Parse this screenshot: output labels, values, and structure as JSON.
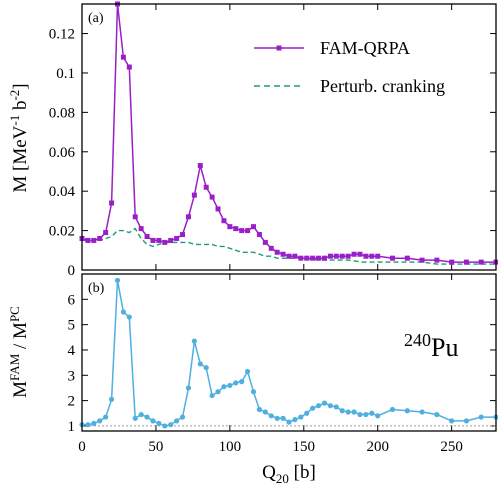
{
  "chart_data": [
    {
      "type": "line",
      "panel_label": "(a)",
      "ylabel": "M [MeV-1 b-2]",
      "ylabel_parts": {
        "main": "M [MeV",
        "sup1": "-1",
        "mid": " b",
        "sup2": "-2",
        "end": "]"
      },
      "xlim": [
        0,
        280
      ],
      "ylim": [
        0,
        0.135
      ],
      "yticks": [
        0,
        0.02,
        0.04,
        0.06,
        0.08,
        0.1,
        0.12
      ],
      "ytick_labels": [
        "0",
        "0.02",
        "0.04",
        "0.06",
        "0.08",
        "0.1",
        "0.12"
      ],
      "legend_position": "top-right",
      "series": [
        {
          "name": "FAM-QRPA",
          "color": "#9b1fc9",
          "style": "solid-square-markers",
          "x": [
            0,
            4,
            8,
            12,
            16,
            20,
            24,
            28,
            32,
            36,
            40,
            44,
            48,
            52,
            56,
            60,
            64,
            68,
            72,
            76,
            80,
            84,
            88,
            92,
            96,
            100,
            104,
            108,
            112,
            116,
            120,
            124,
            128,
            132,
            136,
            140,
            144,
            148,
            152,
            156,
            160,
            164,
            168,
            172,
            176,
            180,
            184,
            188,
            192,
            196,
            200,
            210,
            220,
            230,
            240,
            250,
            260,
            270,
            280
          ],
          "y": [
            0.016,
            0.015,
            0.015,
            0.016,
            0.019,
            0.034,
            0.135,
            0.108,
            0.103,
            0.027,
            0.021,
            0.017,
            0.015,
            0.015,
            0.014,
            0.015,
            0.016,
            0.018,
            0.027,
            0.038,
            0.053,
            0.042,
            0.037,
            0.031,
            0.025,
            0.022,
            0.021,
            0.02,
            0.02,
            0.022,
            0.018,
            0.014,
            0.011,
            0.009,
            0.008,
            0.007,
            0.007,
            0.006,
            0.006,
            0.006,
            0.006,
            0.006,
            0.007,
            0.007,
            0.007,
            0.007,
            0.008,
            0.008,
            0.007,
            0.007,
            0.007,
            0.006,
            0.006,
            0.005,
            0.005,
            0.004,
            0.004,
            0.004,
            0.004
          ]
        },
        {
          "name": "Perturb. cranking",
          "color": "#1e9b7a",
          "style": "dashed",
          "x": [
            0,
            4,
            8,
            12,
            16,
            20,
            24,
            28,
            32,
            36,
            40,
            44,
            48,
            52,
            56,
            60,
            64,
            68,
            72,
            76,
            80,
            84,
            88,
            92,
            96,
            100,
            104,
            108,
            112,
            116,
            120,
            124,
            128,
            132,
            136,
            140,
            150,
            160,
            170,
            180,
            190,
            200,
            210,
            220,
            230,
            240,
            250,
            260,
            270,
            280
          ],
          "y": [
            0.015,
            0.015,
            0.015,
            0.015,
            0.016,
            0.017,
            0.02,
            0.02,
            0.019,
            0.021,
            0.016,
            0.013,
            0.012,
            0.013,
            0.014,
            0.014,
            0.014,
            0.014,
            0.014,
            0.013,
            0.013,
            0.013,
            0.013,
            0.012,
            0.012,
            0.011,
            0.01,
            0.009,
            0.009,
            0.009,
            0.008,
            0.007,
            0.007,
            0.006,
            0.006,
            0.006,
            0.006,
            0.005,
            0.005,
            0.005,
            0.004,
            0.004,
            0.004,
            0.004,
            0.004,
            0.003,
            0.003,
            0.003,
            0.003,
            0.003
          ]
        }
      ]
    },
    {
      "type": "line",
      "panel_label": "(b)",
      "ylabel": "MFAM / MPC",
      "ylabel_parts": {
        "main1": "M",
        "sup1": "FAM",
        "mid": " / M",
        "sup2": "PC"
      },
      "xlabel": "Q20 [b]",
      "xlabel_parts": {
        "main": "Q",
        "sub": "20",
        "end": " [b]"
      },
      "annotation": {
        "sup": "240",
        "text": "Pu"
      },
      "xlim": [
        0,
        280
      ],
      "ylim": [
        0.8,
        7
      ],
      "xticks": [
        0,
        50,
        100,
        150,
        200,
        250
      ],
      "xtick_labels": [
        "0",
        "50",
        "100",
        "150",
        "200",
        "250"
      ],
      "yticks": [
        1,
        2,
        3,
        4,
        5,
        6
      ],
      "ytick_labels": [
        "1",
        "2",
        "3",
        "4",
        "5",
        "6"
      ],
      "reference_line": 1,
      "series": [
        {
          "color": "#4fb0e0",
          "style": "solid-circle-markers",
          "x": [
            0,
            4,
            8,
            12,
            16,
            20,
            24,
            28,
            32,
            36,
            40,
            44,
            48,
            52,
            56,
            60,
            64,
            68,
            72,
            76,
            80,
            84,
            88,
            92,
            96,
            100,
            104,
            108,
            112,
            116,
            120,
            124,
            128,
            132,
            136,
            140,
            144,
            148,
            152,
            156,
            160,
            164,
            168,
            172,
            176,
            180,
            184,
            188,
            192,
            196,
            200,
            210,
            220,
            230,
            240,
            250,
            260,
            270,
            280
          ],
          "y": [
            1.05,
            1.05,
            1.1,
            1.2,
            1.35,
            2.05,
            6.75,
            5.5,
            5.3,
            1.3,
            1.45,
            1.35,
            1.2,
            1.1,
            1.0,
            1.05,
            1.2,
            1.35,
            2.5,
            4.35,
            3.45,
            3.3,
            2.2,
            2.35,
            2.55,
            2.6,
            2.7,
            2.75,
            3.15,
            2.35,
            1.65,
            1.55,
            1.4,
            1.3,
            1.3,
            1.15,
            1.25,
            1.35,
            1.5,
            1.7,
            1.8,
            1.9,
            1.8,
            1.75,
            1.6,
            1.55,
            1.55,
            1.45,
            1.45,
            1.5,
            1.4,
            1.65,
            1.6,
            1.55,
            1.45,
            1.2,
            1.2,
            1.35,
            1.35
          ]
        }
      ]
    }
  ]
}
